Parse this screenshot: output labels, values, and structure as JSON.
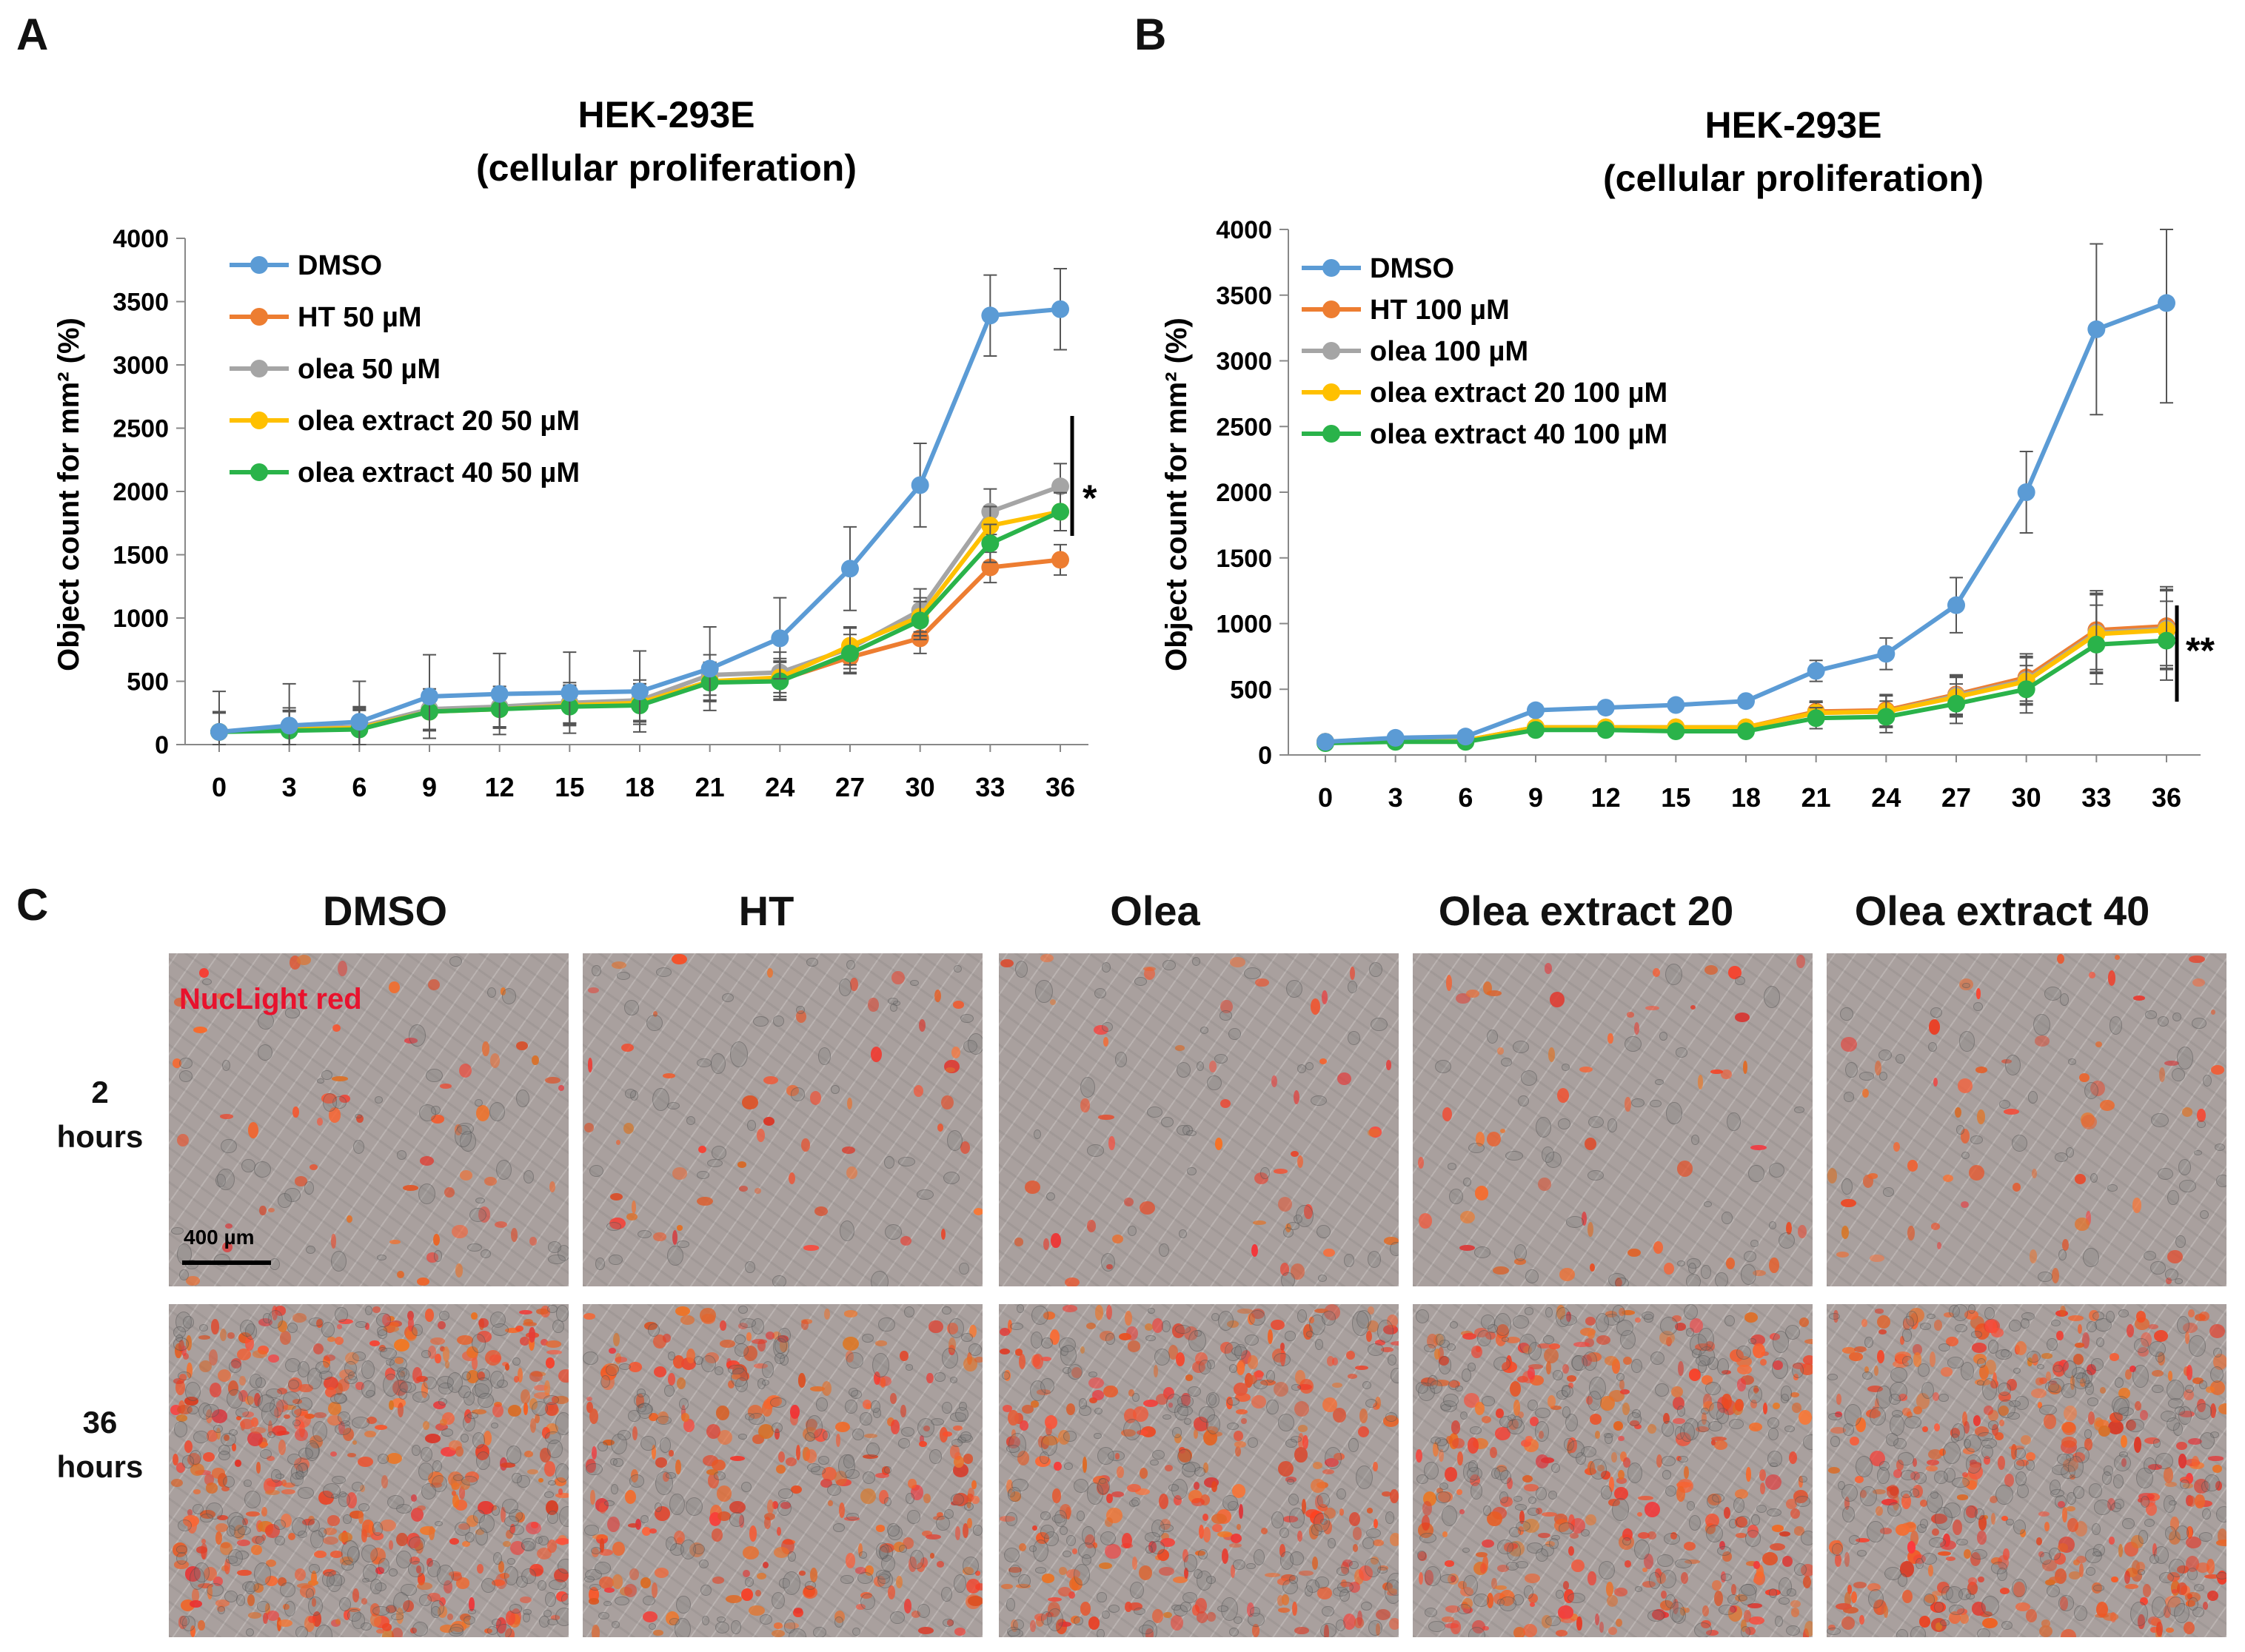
{
  "panel_labels": [
    "A",
    "B",
    "C"
  ],
  "chart_data": [
    {
      "type": "line",
      "panel": "A",
      "title_lines": [
        "HEK-293E",
        "(cellular proliferation)"
      ],
      "ylabel": "Object count for mm² (%)",
      "ylim": [
        0,
        4000
      ],
      "yticks": [
        0,
        500,
        1000,
        1500,
        2000,
        2500,
        3000,
        3500,
        4000
      ],
      "x": [
        0,
        3,
        6,
        9,
        12,
        15,
        18,
        21,
        24,
        27,
        30,
        33,
        36
      ],
      "significance": "*",
      "series": [
        {
          "name": "DMSO",
          "color": "#5b9bd5",
          "values": [
            100,
            150,
            180,
            380,
            400,
            410,
            420,
            600,
            840,
            1390,
            2050,
            3390,
            3440
          ],
          "errors": [
            320,
            330,
            320,
            330,
            320,
            320,
            320,
            330,
            320,
            330,
            330,
            320,
            320
          ]
        },
        {
          "name": "HT 50 µM",
          "color": "#ed7d31",
          "values": [
            100,
            120,
            140,
            270,
            290,
            320,
            330,
            500,
            510,
            690,
            840,
            1400,
            1460
          ],
          "errors": [
            150,
            150,
            150,
            150,
            150,
            150,
            150,
            150,
            150,
            130,
            120,
            120,
            120
          ]
        },
        {
          "name": "olea 50 µM",
          "color": "#a5a5a5",
          "values": [
            100,
            130,
            140,
            280,
            300,
            330,
            350,
            550,
            570,
            760,
            1060,
            1840,
            2040
          ],
          "errors": [
            160,
            160,
            160,
            160,
            160,
            160,
            160,
            160,
            160,
            160,
            170,
            180,
            180
          ]
        },
        {
          "name": "olea extract 20 50 µM",
          "color": "#ffc000",
          "values": [
            100,
            120,
            130,
            260,
            280,
            310,
            330,
            500,
            530,
            780,
            1010,
            1730,
            1840
          ],
          "errors": [
            150,
            150,
            150,
            150,
            150,
            150,
            150,
            150,
            150,
            150,
            150,
            150,
            150
          ]
        },
        {
          "name": "olea extract 40 50 µM",
          "color": "#2ab34a",
          "values": [
            100,
            110,
            120,
            260,
            280,
            300,
            310,
            490,
            500,
            720,
            980,
            1590,
            1840
          ],
          "errors": [
            150,
            150,
            150,
            150,
            150,
            150,
            150,
            150,
            150,
            150,
            150,
            150,
            150
          ]
        }
      ]
    },
    {
      "type": "line",
      "panel": "B",
      "title_lines": [
        "HEK-293E",
        "(cellular proliferation)"
      ],
      "ylabel": "Object count for mm² (%)",
      "ylim": [
        0,
        4000
      ],
      "yticks": [
        0,
        500,
        1000,
        1500,
        2000,
        2500,
        3000,
        3500,
        4000
      ],
      "x": [
        0,
        3,
        6,
        9,
        12,
        15,
        18,
        21,
        24,
        27,
        30,
        33,
        36
      ],
      "significance": "**",
      "series": [
        {
          "name": "DMSO",
          "color": "#5b9bd5",
          "values": [
            100,
            130,
            140,
            340,
            360,
            380,
            410,
            640,
            770,
            1140,
            2000,
            3240,
            3440
          ],
          "errors": [
            20,
            20,
            20,
            30,
            30,
            30,
            30,
            80,
            120,
            210,
            310,
            650,
            760
          ]
        },
        {
          "name": "HT 100 µM",
          "color": "#ed7d31",
          "values": [
            100,
            110,
            110,
            210,
            210,
            210,
            210,
            330,
            340,
            460,
            590,
            950,
            980
          ],
          "errors": [
            20,
            20,
            20,
            30,
            30,
            30,
            30,
            80,
            120,
            150,
            180,
            300,
            300
          ]
        },
        {
          "name": "olea 100 µM",
          "color": "#a5a5a5",
          "values": [
            100,
            110,
            110,
            210,
            210,
            210,
            210,
            320,
            330,
            450,
            570,
            930,
            960
          ],
          "errors": [
            20,
            20,
            20,
            30,
            30,
            30,
            30,
            80,
            120,
            150,
            180,
            300,
            300
          ]
        },
        {
          "name": "olea extract 20 100 µM",
          "color": "#ffc000",
          "values": [
            100,
            110,
            110,
            210,
            210,
            210,
            210,
            320,
            330,
            440,
            560,
            920,
            950
          ],
          "errors": [
            20,
            20,
            20,
            30,
            30,
            30,
            30,
            80,
            120,
            150,
            180,
            300,
            300
          ]
        },
        {
          "name": "olea extract 40 100 µM",
          "color": "#2ab34a",
          "values": [
            90,
            100,
            100,
            190,
            190,
            180,
            180,
            280,
            290,
            390,
            500,
            840,
            870
          ],
          "errors": [
            20,
            20,
            20,
            30,
            30,
            30,
            30,
            80,
            120,
            150,
            180,
            300,
            300
          ]
        }
      ]
    }
  ],
  "panel_c": {
    "columns": [
      "DMSO",
      "HT",
      "Olea",
      "Olea extract 20",
      "Olea extract 40"
    ],
    "rows": [
      {
        "line1": "2",
        "line2": "hours"
      },
      {
        "line1": "36",
        "line2": "hours"
      }
    ],
    "stain_label": "NucLight red",
    "scale_label": "400 µm"
  }
}
